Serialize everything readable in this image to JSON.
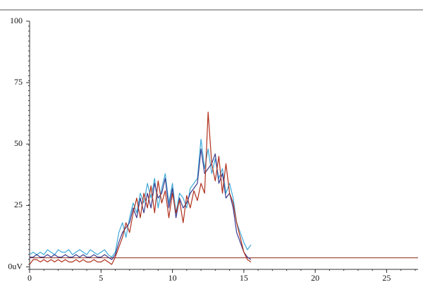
{
  "chart_data": {
    "type": "line",
    "x": [
      0,
      0.25,
      0.5,
      0.75,
      1,
      1.25,
      1.5,
      1.75,
      2,
      2.25,
      2.5,
      2.75,
      3,
      3.25,
      3.5,
      3.75,
      4,
      4.25,
      4.5,
      4.75,
      5,
      5.25,
      5.5,
      5.75,
      6,
      6.25,
      6.5,
      6.75,
      7,
      7.25,
      7.5,
      7.75,
      8,
      8.25,
      8.5,
      8.75,
      9,
      9.25,
      9.5,
      9.75,
      10,
      10.25,
      10.5,
      10.75,
      11,
      11.25,
      11.5,
      11.75,
      12,
      12.25,
      12.5,
      12.75,
      13,
      13.25,
      13.5,
      13.75,
      14,
      14.25,
      14.5,
      14.75,
      15,
      15.25,
      15.5
    ],
    "series": [
      {
        "color": "#3fa9d8",
        "values": [
          5,
          6,
          5,
          6,
          5,
          7,
          6,
          5,
          7,
          6,
          6,
          7,
          5,
          6,
          7,
          6,
          5,
          7,
          6,
          5,
          6,
          7,
          5,
          4,
          6,
          14,
          18,
          12,
          20,
          26,
          22,
          30,
          26,
          34,
          28,
          36,
          24,
          32,
          38,
          26,
          34,
          22,
          30,
          28,
          24,
          32,
          34,
          36,
          52,
          40,
          48,
          38,
          44,
          36,
          40,
          30,
          34,
          28,
          18,
          14,
          10,
          7,
          9
        ]
      },
      {
        "color": "#3a3a8c",
        "values": [
          4,
          4,
          5,
          4,
          4,
          5,
          4,
          5,
          4,
          4,
          5,
          4,
          4,
          5,
          4,
          5,
          4,
          4,
          5,
          4,
          4,
          5,
          4,
          3,
          5,
          10,
          14,
          16,
          18,
          24,
          20,
          28,
          22,
          30,
          24,
          34,
          28,
          30,
          36,
          24,
          32,
          20,
          28,
          24,
          26,
          30,
          32,
          34,
          48,
          38,
          40,
          42,
          46,
          34,
          38,
          28,
          30,
          24,
          14,
          10,
          6,
          4,
          3
        ]
      },
      {
        "color": "#b0301c",
        "values": [
          1,
          3,
          3,
          2,
          3,
          2,
          3,
          2,
          3,
          2,
          3,
          2,
          2,
          3,
          2,
          3,
          2,
          2,
          3,
          2,
          2,
          3,
          2,
          1,
          4,
          8,
          12,
          18,
          14,
          22,
          28,
          20,
          30,
          24,
          33,
          22,
          35,
          26,
          31,
          20,
          30,
          22,
          27,
          18,
          29,
          24,
          31,
          27,
          34,
          30,
          63,
          42,
          35,
          45,
          30,
          42,
          30,
          26,
          18,
          12,
          6,
          3,
          2
        ]
      }
    ],
    "hlines": [
      {
        "value": 3.7,
        "color": "#8b2a1a"
      }
    ],
    "xlim": [
      0,
      27.2
    ],
    "ylim": [
      -1,
      100
    ],
    "xticks": [
      0,
      5,
      10,
      15,
      20,
      25
    ],
    "yticks": [
      {
        "value": 0,
        "label": "0uV"
      },
      25,
      50,
      75,
      100
    ]
  }
}
